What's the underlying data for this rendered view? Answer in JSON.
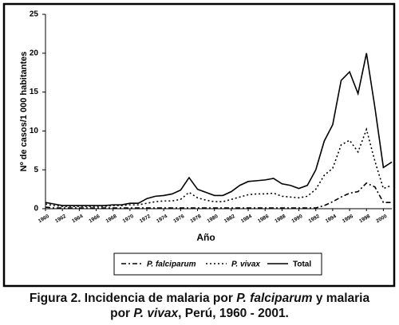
{
  "chart_data": {
    "type": "line",
    "y_label": "Nº de casos/1 000 habitantes",
    "x_label": "Año",
    "x": [
      1960,
      1961,
      1962,
      1963,
      1964,
      1965,
      1966,
      1967,
      1968,
      1969,
      1970,
      1971,
      1972,
      1973,
      1974,
      1975,
      1976,
      1977,
      1978,
      1979,
      1980,
      1981,
      1982,
      1983,
      1984,
      1985,
      1986,
      1987,
      1988,
      1989,
      1990,
      1991,
      1992,
      1993,
      1994,
      1995,
      1996,
      1997,
      1998,
      1999,
      2000,
      2001
    ],
    "series": [
      {
        "name": "P. falciparum",
        "color": "#000000",
        "dash": "dash-dot",
        "values": [
          0.2,
          0.1,
          0.1,
          0.1,
          0.1,
          0.1,
          0.1,
          0.1,
          0.1,
          0.1,
          0.1,
          0.1,
          0.1,
          0.1,
          0.1,
          0.1,
          0.1,
          0.1,
          0.1,
          0.1,
          0.1,
          0.1,
          0.1,
          0.1,
          0.1,
          0.1,
          0.1,
          0.1,
          0.1,
          0.1,
          0.1,
          0.1,
          0.1,
          0.4,
          0.9,
          1.5,
          2.0,
          2.2,
          3.3,
          2.8,
          0.8,
          0.8
        ]
      },
      {
        "name": "P. vivax",
        "color": "#000000",
        "dash": "dotted",
        "values": [
          0.6,
          0.4,
          0.3,
          0.3,
          0.3,
          0.3,
          0.3,
          0.3,
          0.4,
          0.4,
          0.5,
          0.5,
          0.7,
          0.9,
          1.0,
          1.0,
          1.2,
          2.1,
          1.4,
          1.1,
          0.9,
          0.9,
          1.2,
          1.5,
          1.8,
          1.9,
          1.9,
          2.0,
          1.6,
          1.5,
          1.4,
          1.6,
          2.5,
          4.3,
          5.2,
          8.2,
          8.8,
          7.3,
          10.2,
          6.1,
          2.6,
          3.0
        ]
      },
      {
        "name": "Total",
        "color": "#000000",
        "dash": "solid",
        "values": [
          0.8,
          0.6,
          0.4,
          0.4,
          0.4,
          0.4,
          0.4,
          0.4,
          0.5,
          0.5,
          0.7,
          0.7,
          1.3,
          1.6,
          1.7,
          1.9,
          2.4,
          4.0,
          2.5,
          2.1,
          1.7,
          1.7,
          2.2,
          3.0,
          3.5,
          3.6,
          3.7,
          3.9,
          3.2,
          3.0,
          2.6,
          3.0,
          5.0,
          8.7,
          10.8,
          16.5,
          17.6,
          14.8,
          20.0,
          13.0,
          5.3,
          6.0
        ]
      }
    ],
    "xlim": [
      1960,
      2001
    ],
    "xticks": [
      1960,
      1962,
      1964,
      1966,
      1968,
      1970,
      1972,
      1974,
      1976,
      1978,
      1980,
      1982,
      1984,
      1986,
      1988,
      1990,
      1992,
      1994,
      1996,
      1998,
      2000
    ],
    "ylim": [
      0,
      25
    ],
    "yticks": [
      0,
      5,
      10,
      15,
      20,
      25
    ],
    "grid": false,
    "legend": "bottom"
  },
  "caption": {
    "line1": [
      "Figura 2. Incidencia de malaria por",
      "P. falciparum",
      "y malaria"
    ],
    "line2": [
      "por",
      "P. vivax",
      ", Perú, 1960 - 2001."
    ]
  }
}
